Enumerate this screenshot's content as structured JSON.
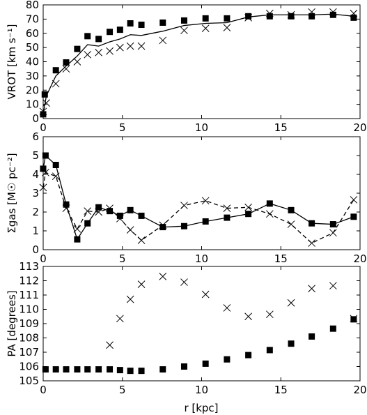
{
  "chart_data": [
    {
      "type": "scatter",
      "ylabel": "VROT [km s⁻¹]",
      "xlim": [
        0,
        20
      ],
      "ylim": [
        0,
        80
      ],
      "xticks": [
        "0",
        "5",
        "10",
        "15",
        "20"
      ],
      "yticks": [
        "0",
        "10",
        "20",
        "30",
        "40",
        "50",
        "60",
        "70",
        "80"
      ],
      "series": [
        {
          "marker": "square",
          "style": "filled-square",
          "x": [
            0.0,
            0.1,
            0.8,
            1.45,
            2.15,
            2.8,
            3.5,
            4.2,
            4.85,
            5.5,
            6.2,
            7.55,
            8.9,
            10.25,
            11.6,
            12.95,
            14.3,
            15.65,
            16.95,
            18.3,
            19.6
          ],
          "y": [
            3,
            17,
            34,
            39.5,
            49,
            58,
            56,
            61,
            62.5,
            67,
            66,
            67.5,
            69,
            70.5,
            70.5,
            72,
            72,
            72,
            72,
            73,
            71
          ]
        },
        {
          "marker": "x",
          "style": "cross",
          "x": [
            0.0,
            0.2,
            0.8,
            1.45,
            2.15,
            2.8,
            3.5,
            4.2,
            4.85,
            5.5,
            6.2,
            7.55,
            8.9,
            10.25,
            11.6,
            12.95,
            14.3,
            15.65,
            16.95,
            18.3,
            19.6
          ],
          "y": [
            5,
            11,
            24.5,
            35,
            40,
            45,
            46.5,
            47.5,
            50,
            51,
            51,
            55,
            62,
            63.5,
            64,
            71,
            74,
            73,
            75,
            75,
            74
          ]
        },
        {
          "marker": "none",
          "style": "solid-line",
          "x": [
            0.0,
            0.2,
            0.8,
            1.45,
            2.15,
            2.8,
            3.5,
            4.2,
            4.85,
            5.5,
            6.2,
            7.55,
            8.9,
            10.25,
            11.6,
            12.95,
            14.3,
            15.65,
            16.95,
            18.3,
            19.6
          ],
          "y": [
            3,
            16,
            30,
            37,
            44,
            52,
            51,
            54,
            56,
            59,
            58.5,
            61.5,
            65.5,
            67,
            67.5,
            71.5,
            73,
            73,
            73,
            73.5,
            72
          ]
        }
      ]
    },
    {
      "type": "line",
      "ylabel": "Σgas [M☉ pc⁻²]",
      "xlim": [
        0,
        20
      ],
      "ylim": [
        0,
        6
      ],
      "xticks": [
        "0",
        "5",
        "10",
        "15",
        "20"
      ],
      "yticks": [
        "0",
        "1",
        "2",
        "3",
        "4",
        "5",
        "6"
      ],
      "series": [
        {
          "marker": "square",
          "style": "solid-with-squares",
          "x": [
            0.0,
            0.15,
            0.8,
            1.45,
            2.15,
            2.8,
            3.5,
            4.2,
            4.85,
            5.5,
            6.2,
            7.55,
            8.9,
            10.25,
            11.6,
            12.95,
            14.3,
            15.65,
            16.95,
            18.3,
            19.6
          ],
          "y": [
            4.3,
            5.0,
            4.5,
            2.4,
            0.55,
            1.4,
            2.25,
            2.05,
            1.8,
            2.1,
            1.8,
            1.2,
            1.25,
            1.5,
            1.7,
            1.9,
            2.45,
            2.1,
            1.4,
            1.35,
            1.75
          ]
        },
        {
          "marker": "x",
          "style": "dashed-with-crosses",
          "x": [
            0.0,
            0.15,
            0.8,
            1.45,
            2.15,
            2.8,
            3.5,
            4.2,
            4.85,
            5.5,
            6.2,
            7.55,
            8.9,
            10.25,
            11.6,
            12.95,
            14.3,
            15.65,
            16.95,
            18.3,
            19.6
          ],
          "y": [
            3.3,
            4.1,
            3.9,
            2.2,
            1.1,
            2.05,
            2.0,
            2.2,
            1.65,
            1.05,
            0.5,
            1.3,
            2.35,
            2.6,
            2.2,
            2.25,
            1.9,
            1.35,
            0.35,
            0.9,
            2.65
          ]
        }
      ]
    },
    {
      "type": "scatter",
      "xlabel": "r [kpc]",
      "ylabel": "PA [degrees]",
      "xlim": [
        0,
        20
      ],
      "ylim": [
        105,
        113
      ],
      "xticks": [
        "0",
        "5",
        "10",
        "15",
        "20"
      ],
      "yticks": [
        "105",
        "106",
        "107",
        "108",
        "109",
        "110",
        "111",
        "112",
        "113"
      ],
      "series": [
        {
          "marker": "square",
          "style": "filled-square",
          "x": [
            0.15,
            0.8,
            1.45,
            2.15,
            2.8,
            3.5,
            4.2,
            4.85,
            5.5,
            6.2,
            7.55,
            8.9,
            10.25,
            11.6,
            12.95,
            14.3,
            15.65,
            16.95,
            18.3,
            19.6
          ],
          "y": [
            105.8,
            105.8,
            105.8,
            105.8,
            105.8,
            105.8,
            105.8,
            105.75,
            105.7,
            105.7,
            105.8,
            106.0,
            106.2,
            106.5,
            106.8,
            107.15,
            107.6,
            108.1,
            108.65,
            109.3
          ]
        },
        {
          "marker": "x",
          "style": "cross",
          "x": [
            4.2,
            4.85,
            5.5,
            6.2,
            7.55,
            8.9,
            10.25,
            11.6,
            12.95,
            14.3,
            15.65,
            16.95,
            18.3,
            19.6
          ],
          "y": [
            107.5,
            109.35,
            110.7,
            111.75,
            112.3,
            111.9,
            111.05,
            110.1,
            109.5,
            109.65,
            110.45,
            111.45,
            111.65,
            109.35
          ]
        }
      ]
    }
  ]
}
